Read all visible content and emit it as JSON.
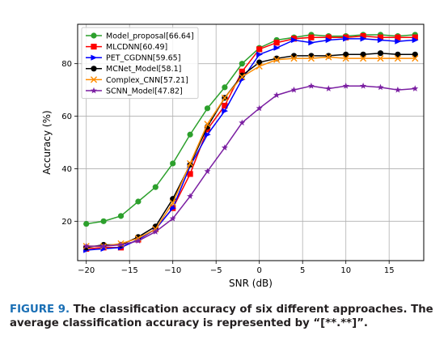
{
  "chart_data": {
    "type": "line",
    "title": "",
    "xlabel": "SNR (dB)",
    "ylabel": "Accuracy (%)",
    "xlim": [
      -21,
      19
    ],
    "ylim": [
      5,
      95
    ],
    "xticks": [
      -20,
      -15,
      -10,
      -5,
      0,
      5,
      10,
      15
    ],
    "xtick_labels": [
      "−20",
      "−15",
      "−10",
      "−5",
      "0",
      "5",
      "10",
      "15"
    ],
    "yticks": [
      20,
      40,
      60,
      80
    ],
    "ytick_labels": [
      "20",
      "40",
      "60",
      "80"
    ],
    "grid": true,
    "legend_position": "upper-left",
    "x": [
      -20,
      -18,
      -16,
      -14,
      -12,
      -10,
      -8,
      -6,
      -4,
      -2,
      0,
      2,
      4,
      6,
      8,
      10,
      12,
      14,
      16,
      18
    ],
    "series": [
      {
        "name": "Model_proposal[66.64]",
        "color": "#2ca02c",
        "marker": "circle",
        "values": [
          19,
          20,
          22,
          27.5,
          33,
          42,
          53,
          63,
          71,
          80,
          86,
          89,
          90,
          91,
          90.5,
          90.5,
          91,
          91,
          90.5,
          91
        ]
      },
      {
        "name": "MLCDNN[60.49]",
        "color": "#ff0000",
        "marker": "square",
        "values": [
          9.5,
          10,
          10,
          13,
          17,
          25,
          38,
          55,
          64,
          77,
          85.5,
          88,
          89.5,
          90,
          90,
          90,
          90.5,
          90,
          90,
          90
        ]
      },
      {
        "name": "PET_CGDNN[59.65]",
        "color": "#0000ff",
        "marker": "triangle-right",
        "values": [
          9,
          9.5,
          10,
          13,
          17,
          25,
          41,
          53,
          62,
          74,
          83.5,
          86,
          89,
          88,
          89,
          89.5,
          89.5,
          89,
          88.5,
          89
        ]
      },
      {
        "name": "MCNet_Model[58.1]",
        "color": "#000000",
        "marker": "circle",
        "values": [
          10,
          11,
          11,
          14,
          18,
          28.5,
          41.5,
          56,
          67,
          75.5,
          80.5,
          82,
          83,
          83,
          83,
          83.5,
          83.5,
          84,
          83.5,
          83.5
        ]
      },
      {
        "name": "Complex_CNN[57.21]",
        "color": "#ff8c00",
        "marker": "x",
        "values": [
          10.5,
          10.5,
          11.5,
          13.5,
          17,
          27,
          42,
          57,
          67,
          75,
          79,
          81.5,
          82,
          82,
          82.5,
          82,
          82,
          82,
          82,
          82
        ]
      },
      {
        "name": "SCNN_Model[47.82]",
        "color": "#7b1fa2",
        "marker": "star",
        "values": [
          10.5,
          10.5,
          11,
          12.5,
          16,
          21,
          29.5,
          39,
          48,
          57.5,
          63,
          68,
          70,
          71.5,
          70.5,
          71.5,
          71.5,
          71,
          70,
          70.5
        ]
      }
    ]
  },
  "caption": {
    "figure_label": "FIGURE 9.",
    "text": "The classification accuracy of six different approaches. The average classification accuracy is represented by “[**.**]”."
  }
}
